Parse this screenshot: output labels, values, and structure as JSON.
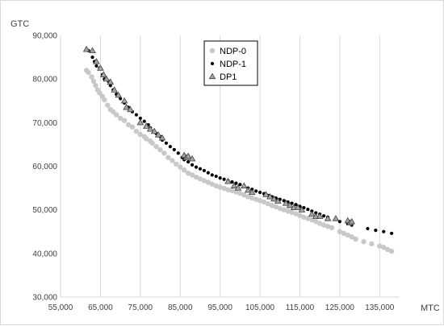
{
  "chart_data": {
    "type": "scatter",
    "title": "",
    "xlabel": "MTC",
    "ylabel": "GTC",
    "xlim": [
      55000,
      140000
    ],
    "ylim": [
      30000,
      90000
    ],
    "x_ticks": [
      55000,
      65000,
      75000,
      85000,
      95000,
      105000,
      115000,
      125000,
      135000
    ],
    "y_ticks": [
      30000,
      40000,
      50000,
      60000,
      70000,
      80000,
      90000
    ],
    "x_tick_labels": [
      "55,000",
      "65,000",
      "75,000",
      "85,000",
      "95,000",
      "105,000",
      "115,000",
      "125,000",
      "135,000"
    ],
    "y_tick_labels": [
      "30,000",
      "40,000",
      "50,000",
      "60,000",
      "70,000",
      "80,000",
      "90,000"
    ],
    "grid": "vertical",
    "legend_position": "top-center",
    "colors": {
      "NDP-0": "#c8c8c8",
      "NDP-1": "#000000",
      "DP1": "#a6a6a6",
      "grid": "#d9d9d9"
    },
    "series": [
      {
        "name": "NDP-0",
        "marker": "circle",
        "points": [
          [
            61500,
            82000
          ],
          [
            62000,
            81500
          ],
          [
            62800,
            80500
          ],
          [
            63300,
            79500
          ],
          [
            63800,
            78500
          ],
          [
            64300,
            77500
          ],
          [
            64800,
            76800
          ],
          [
            65500,
            76000
          ],
          [
            66000,
            75200
          ],
          [
            66800,
            74000
          ],
          [
            67500,
            73000
          ],
          [
            68200,
            72500
          ],
          [
            69000,
            71800
          ],
          [
            70000,
            71000
          ],
          [
            71000,
            70500
          ],
          [
            72000,
            69500
          ],
          [
            73000,
            69000
          ],
          [
            74000,
            68000
          ],
          [
            75000,
            67300
          ],
          [
            76000,
            66800
          ],
          [
            76500,
            66300
          ],
          [
            77500,
            65800
          ],
          [
            78000,
            65300
          ],
          [
            79000,
            64500
          ],
          [
            80000,
            63800
          ],
          [
            81000,
            63000
          ],
          [
            82000,
            62000
          ],
          [
            83000,
            61300
          ],
          [
            84000,
            60500
          ],
          [
            85000,
            59800
          ],
          [
            86000,
            59100
          ],
          [
            87000,
            58400
          ],
          [
            88000,
            58000
          ],
          [
            89000,
            57500
          ],
          [
            90000,
            57100
          ],
          [
            91000,
            56700
          ],
          [
            92000,
            56300
          ],
          [
            93000,
            55900
          ],
          [
            94000,
            55500
          ],
          [
            95000,
            55200
          ],
          [
            96000,
            54900
          ],
          [
            97000,
            54600
          ],
          [
            98000,
            54400
          ],
          [
            99000,
            54100
          ],
          [
            100000,
            53800
          ],
          [
            101000,
            53400
          ],
          [
            102000,
            53000
          ],
          [
            103000,
            52700
          ],
          [
            104000,
            52400
          ],
          [
            105000,
            52100
          ],
          [
            106000,
            51800
          ],
          [
            107000,
            51400
          ],
          [
            108000,
            51000
          ],
          [
            109000,
            50700
          ],
          [
            110000,
            50300
          ],
          [
            111000,
            50000
          ],
          [
            112000,
            49700
          ],
          [
            113000,
            49400
          ],
          [
            114000,
            49100
          ],
          [
            115000,
            48700
          ],
          [
            116000,
            48300
          ],
          [
            117000,
            48000
          ],
          [
            118000,
            47700
          ],
          [
            119000,
            47300
          ],
          [
            120000,
            46900
          ],
          [
            121000,
            46500
          ],
          [
            122000,
            46200
          ],
          [
            123000,
            45900
          ],
          [
            125000,
            45000
          ],
          [
            126000,
            44600
          ],
          [
            127000,
            44200
          ],
          [
            128000,
            43800
          ],
          [
            129000,
            43300
          ],
          [
            131000,
            42700
          ],
          [
            133000,
            42200
          ],
          [
            135000,
            41700
          ],
          [
            136000,
            41400
          ],
          [
            137000,
            40900
          ],
          [
            138000,
            40500
          ]
        ]
      },
      {
        "name": "NDP-1",
        "marker": "dot",
        "points": [
          [
            61500,
            86800
          ],
          [
            62000,
            86500
          ],
          [
            63000,
            85000
          ],
          [
            63500,
            84000
          ],
          [
            64000,
            83000
          ],
          [
            64800,
            82500
          ],
          [
            65500,
            81000
          ],
          [
            66000,
            80000
          ],
          [
            67000,
            79500
          ],
          [
            67500,
            78500
          ],
          [
            68200,
            77500
          ],
          [
            69000,
            76500
          ],
          [
            70000,
            75500
          ],
          [
            71000,
            74500
          ],
          [
            72000,
            73500
          ],
          [
            73000,
            72500
          ],
          [
            74000,
            71800
          ],
          [
            75000,
            71000
          ],
          [
            76000,
            70300
          ],
          [
            77000,
            69500
          ],
          [
            77500,
            68800
          ],
          [
            78500,
            68000
          ],
          [
            79000,
            67500
          ],
          [
            80000,
            66800
          ],
          [
            80500,
            66000
          ],
          [
            81500,
            65300
          ],
          [
            82500,
            64500
          ],
          [
            83500,
            63800
          ],
          [
            84500,
            63000
          ],
          [
            85500,
            62000
          ],
          [
            86000,
            61500
          ],
          [
            87000,
            61000
          ],
          [
            88000,
            60300
          ],
          [
            89000,
            59800
          ],
          [
            90000,
            59400
          ],
          [
            91000,
            59000
          ],
          [
            92000,
            58500
          ],
          [
            93000,
            58000
          ],
          [
            94000,
            57700
          ],
          [
            95000,
            57300
          ],
          [
            96000,
            57000
          ],
          [
            97000,
            56700
          ],
          [
            98000,
            56400
          ],
          [
            99000,
            56100
          ],
          [
            100000,
            55800
          ],
          [
            101000,
            55400
          ],
          [
            102000,
            55000
          ],
          [
            103000,
            54700
          ],
          [
            104000,
            54300
          ],
          [
            105000,
            54000
          ],
          [
            106000,
            53700
          ],
          [
            107000,
            53300
          ],
          [
            108000,
            53000
          ],
          [
            109000,
            52700
          ],
          [
            110000,
            52400
          ],
          [
            111000,
            52100
          ],
          [
            112000,
            51800
          ],
          [
            113000,
            51500
          ],
          [
            114000,
            51200
          ],
          [
            115000,
            50800
          ],
          [
            116000,
            50500
          ],
          [
            117000,
            50100
          ],
          [
            118000,
            49700
          ],
          [
            119000,
            49300
          ],
          [
            120000,
            49000
          ],
          [
            121000,
            48600
          ],
          [
            122000,
            48300
          ],
          [
            124000,
            47800
          ],
          [
            125000,
            47300
          ],
          [
            127000,
            46800
          ],
          [
            128000,
            46500
          ],
          [
            132000,
            45700
          ],
          [
            134000,
            45300
          ],
          [
            136000,
            45000
          ],
          [
            138000,
            44600
          ]
        ]
      },
      {
        "name": "DP1",
        "marker": "triangle",
        "points": [
          [
            61500,
            86800
          ],
          [
            63000,
            86500
          ],
          [
            64000,
            84000
          ],
          [
            65000,
            82500
          ],
          [
            65800,
            81000
          ],
          [
            66500,
            80000
          ],
          [
            67500,
            79300
          ],
          [
            68500,
            77500
          ],
          [
            69500,
            76300
          ],
          [
            71000,
            75000
          ],
          [
            71500,
            73500
          ],
          [
            72500,
            73000
          ],
          [
            75000,
            70000
          ],
          [
            76500,
            69200
          ],
          [
            77500,
            68500
          ],
          [
            78500,
            68000
          ],
          [
            79500,
            67200
          ],
          [
            80500,
            66500
          ],
          [
            86000,
            62500
          ],
          [
            86500,
            62000
          ],
          [
            87000,
            62300
          ],
          [
            88000,
            61700
          ],
          [
            97000,
            56500
          ],
          [
            98500,
            55500
          ],
          [
            99500,
            55000
          ],
          [
            101000,
            55500
          ],
          [
            102000,
            54500
          ],
          [
            103000,
            54000
          ],
          [
            106500,
            53500
          ],
          [
            107500,
            53000
          ],
          [
            108500,
            52500
          ],
          [
            109500,
            52000
          ],
          [
            111500,
            51500
          ],
          [
            112500,
            51000
          ],
          [
            113500,
            50500
          ],
          [
            114500,
            50500
          ],
          [
            115500,
            50000
          ],
          [
            118000,
            49000
          ],
          [
            119000,
            48500
          ],
          [
            120000,
            48500
          ],
          [
            122000,
            48000
          ],
          [
            124000,
            48000
          ],
          [
            127000,
            47500
          ],
          [
            127500,
            47000
          ],
          [
            128000,
            47300
          ]
        ]
      }
    ]
  }
}
